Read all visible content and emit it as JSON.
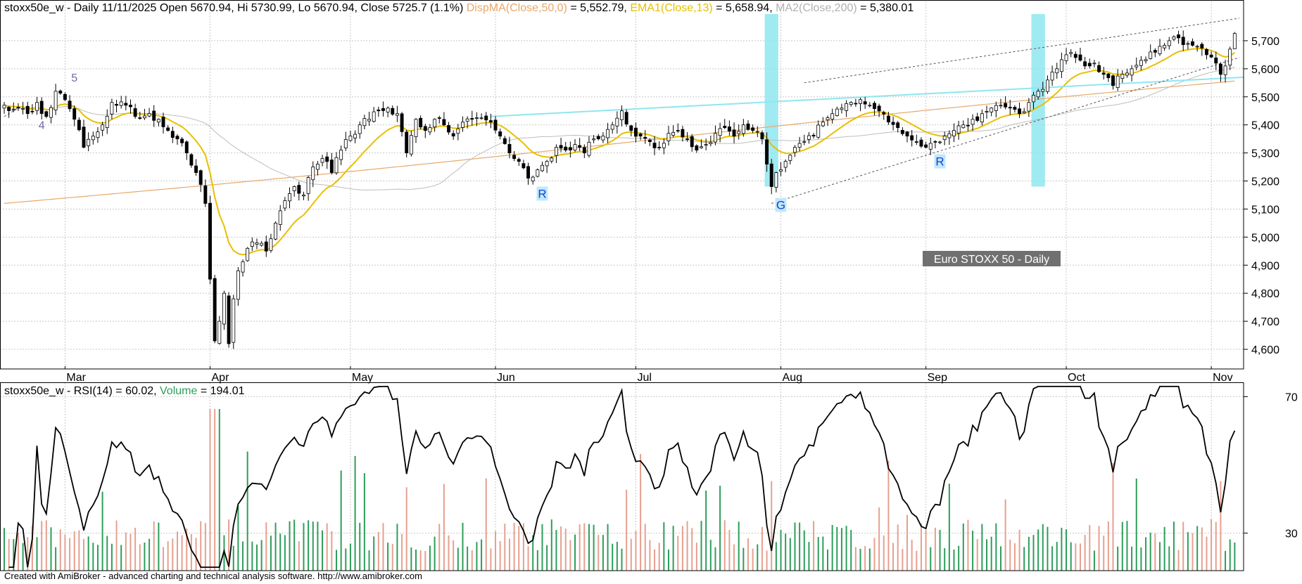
{
  "header": {
    "ticker": "stoxx50e_w",
    "summary": "stoxx50e_w - Daily 11/11/2025 Open 5670.94, Hi 5730.99, Lo 5670.94, Close 5725.7 (1.1%)",
    "ma50_label": "DispMA(Close,50,0)",
    "ma50_value": " = 5,552.79, ",
    "ema13_label": "EMA1(Close,13)",
    "ema13_value": " = 5,658.94, ",
    "ma200_label": "MA2(Close,200)",
    "ma200_value": " = 5,380.01"
  },
  "lower_header": {
    "rsi_text": "stoxx50e_w - RSI(14) = 60.02, ",
    "volume_label": "Volume",
    "volume_value": " = 194.01"
  },
  "watermark": "Euro STOXX 50 - Daily",
  "footer": "Created with AmiBroker - advanced charting and technical analysis software. http://www.amibroker.com",
  "colors": {
    "ma50": "#e8a86a",
    "ema13": "#e8c000",
    "ma200": "#bdbdbd",
    "volume_up": "#2e9d5a",
    "volume_down": "#e6a08f",
    "highlight": "#8fe6f0",
    "trendline": "#8fe6f0",
    "rsi": "#000000",
    "grid": "#c8c8c8"
  },
  "chart_data": [
    {
      "type": "candlestick",
      "name": "price",
      "y_ticks": [
        4600,
        4700,
        4800,
        4900,
        5000,
        5100,
        5200,
        5300,
        5400,
        5500,
        5600,
        5700
      ],
      "y_tick_labels": [
        "4,600",
        "4,700",
        "4,800",
        "4,900",
        "5,000",
        "5,100",
        "5,200",
        "5,300",
        "5,400",
        "5,500",
        "5,600",
        "5,700"
      ],
      "ylim": [
        4530,
        5790
      ],
      "grid": true,
      "x_month_labels": [
        {
          "label": "Mar",
          "day": 13
        },
        {
          "label": "Apr",
          "day": 44
        },
        {
          "label": "May",
          "day": 74
        },
        {
          "label": "Jun",
          "day": 105
        },
        {
          "label": "Jul",
          "day": 135
        },
        {
          "label": "Aug",
          "day": 166
        },
        {
          "label": "Sep",
          "day": 197
        },
        {
          "label": "Oct",
          "day": 227
        },
        {
          "label": "Nov",
          "day": 258
        }
      ],
      "anchors": [
        {
          "day": 0,
          "close": 5470
        },
        {
          "day": 2,
          "close": 5455
        },
        {
          "day": 5,
          "close": 5440
        },
        {
          "day": 7,
          "close": 5480
        },
        {
          "day": 9,
          "close": 5430
        },
        {
          "day": 11,
          "close": 5520
        },
        {
          "day": 13,
          "close": 5490
        },
        {
          "day": 15,
          "close": 5420
        },
        {
          "day": 17,
          "close": 5320
        },
        {
          "day": 19,
          "close": 5360
        },
        {
          "day": 21,
          "close": 5400
        },
        {
          "day": 23,
          "close": 5480
        },
        {
          "day": 26,
          "close": 5470
        },
        {
          "day": 28,
          "close": 5430
        },
        {
          "day": 31,
          "close": 5440
        },
        {
          "day": 33,
          "close": 5420
        },
        {
          "day": 35,
          "close": 5380
        },
        {
          "day": 37,
          "close": 5350
        },
        {
          "day": 39,
          "close": 5300
        },
        {
          "day": 41,
          "close": 5230
        },
        {
          "day": 43,
          "close": 5120
        },
        {
          "day": 44,
          "close": 4850
        },
        {
          "day": 45,
          "close": 4630
        },
        {
          "day": 46,
          "close": 4700
        },
        {
          "day": 47,
          "close": 4800
        },
        {
          "day": 48,
          "close": 4620
        },
        {
          "day": 49,
          "close": 4780
        },
        {
          "day": 50,
          "close": 4880
        },
        {
          "day": 52,
          "close": 4960
        },
        {
          "day": 54,
          "close": 4980
        },
        {
          "day": 56,
          "close": 4950
        },
        {
          "day": 58,
          "close": 5050
        },
        {
          "day": 60,
          "close": 5130
        },
        {
          "day": 62,
          "close": 5180
        },
        {
          "day": 64,
          "close": 5150
        },
        {
          "day": 66,
          "close": 5250
        },
        {
          "day": 68,
          "close": 5280
        },
        {
          "day": 70,
          "close": 5230
        },
        {
          "day": 72,
          "close": 5310
        },
        {
          "day": 74,
          "close": 5360
        },
        {
          "day": 76,
          "close": 5400
        },
        {
          "day": 78,
          "close": 5420
        },
        {
          "day": 80,
          "close": 5450
        },
        {
          "day": 82,
          "close": 5460
        },
        {
          "day": 84,
          "close": 5440
        },
        {
          "day": 86,
          "close": 5300
        },
        {
          "day": 88,
          "close": 5420
        },
        {
          "day": 90,
          "close": 5380
        },
        {
          "day": 92,
          "close": 5420
        },
        {
          "day": 94,
          "close": 5400
        },
        {
          "day": 96,
          "close": 5360
        },
        {
          "day": 98,
          "close": 5410
        },
        {
          "day": 100,
          "close": 5420
        },
        {
          "day": 102,
          "close": 5425
        },
        {
          "day": 104,
          "close": 5410
        },
        {
          "day": 106,
          "close": 5360
        },
        {
          "day": 108,
          "close": 5300
        },
        {
          "day": 110,
          "close": 5270
        },
        {
          "day": 112,
          "close": 5210
        },
        {
          "day": 114,
          "close": 5240
        },
        {
          "day": 116,
          "close": 5270
        },
        {
          "day": 118,
          "close": 5320
        },
        {
          "day": 120,
          "close": 5310
        },
        {
          "day": 122,
          "close": 5330
        },
        {
          "day": 124,
          "close": 5300
        },
        {
          "day": 126,
          "close": 5350
        },
        {
          "day": 128,
          "close": 5360
        },
        {
          "day": 130,
          "close": 5400
        },
        {
          "day": 132,
          "close": 5450
        },
        {
          "day": 134,
          "close": 5380
        },
        {
          "day": 136,
          "close": 5360
        },
        {
          "day": 138,
          "close": 5340
        },
        {
          "day": 140,
          "close": 5320
        },
        {
          "day": 142,
          "close": 5370
        },
        {
          "day": 144,
          "close": 5380
        },
        {
          "day": 146,
          "close": 5350
        },
        {
          "day": 148,
          "close": 5310
        },
        {
          "day": 150,
          "close": 5330
        },
        {
          "day": 152,
          "close": 5370
        },
        {
          "day": 154,
          "close": 5390
        },
        {
          "day": 156,
          "close": 5360
        },
        {
          "day": 158,
          "close": 5400
        },
        {
          "day": 160,
          "close": 5380
        },
        {
          "day": 162,
          "close": 5350
        },
        {
          "day": 163,
          "close": 5260
        },
        {
          "day": 164,
          "close": 5180
        },
        {
          "day": 165,
          "close": 5230
        },
        {
          "day": 167,
          "close": 5270
        },
        {
          "day": 169,
          "close": 5320
        },
        {
          "day": 171,
          "close": 5340
        },
        {
          "day": 173,
          "close": 5360
        },
        {
          "day": 175,
          "close": 5410
        },
        {
          "day": 177,
          "close": 5440
        },
        {
          "day": 179,
          "close": 5460
        },
        {
          "day": 181,
          "close": 5480
        },
        {
          "day": 183,
          "close": 5490
        },
        {
          "day": 185,
          "close": 5470
        },
        {
          "day": 187,
          "close": 5450
        },
        {
          "day": 189,
          "close": 5410
        },
        {
          "day": 191,
          "close": 5390
        },
        {
          "day": 193,
          "close": 5360
        },
        {
          "day": 195,
          "close": 5340
        },
        {
          "day": 197,
          "close": 5320
        },
        {
          "day": 199,
          "close": 5340
        },
        {
          "day": 201,
          "close": 5360
        },
        {
          "day": 203,
          "close": 5380
        },
        {
          "day": 205,
          "close": 5400
        },
        {
          "day": 207,
          "close": 5420
        },
        {
          "day": 209,
          "close": 5440
        },
        {
          "day": 211,
          "close": 5460
        },
        {
          "day": 213,
          "close": 5470
        },
        {
          "day": 215,
          "close": 5460
        },
        {
          "day": 217,
          "close": 5440
        },
        {
          "day": 219,
          "close": 5480
        },
        {
          "day": 221,
          "close": 5520
        },
        {
          "day": 223,
          "close": 5560
        },
        {
          "day": 225,
          "close": 5600
        },
        {
          "day": 227,
          "close": 5650
        },
        {
          "day": 229,
          "close": 5640
        },
        {
          "day": 231,
          "close": 5610
        },
        {
          "day": 233,
          "close": 5620
        },
        {
          "day": 235,
          "close": 5580
        },
        {
          "day": 237,
          "close": 5540
        },
        {
          "day": 239,
          "close": 5580
        },
        {
          "day": 241,
          "close": 5600
        },
        {
          "day": 243,
          "close": 5630
        },
        {
          "day": 245,
          "close": 5660
        },
        {
          "day": 247,
          "close": 5680
        },
        {
          "day": 249,
          "close": 5700
        },
        {
          "day": 251,
          "close": 5710
        },
        {
          "day": 253,
          "close": 5690
        },
        {
          "day": 255,
          "close": 5680
        },
        {
          "day": 257,
          "close": 5650
        },
        {
          "day": 259,
          "close": 5620
        },
        {
          "day": 260,
          "close": 5580
        },
        {
          "day": 261,
          "close": 5610
        },
        {
          "day": 262,
          "close": 5670
        },
        {
          "day": 263,
          "close": 5725.7
        }
      ],
      "last_bar": {
        "open": 5670.94,
        "high": 5730.99,
        "low": 5670.94,
        "close": 5725.7
      },
      "ma50_last": 5552.79,
      "ema13_last": 5658.94,
      "ma200_last": 5380.01,
      "highlight_days": [
        [
          163,
          165
        ],
        [
          220,
          222
        ]
      ],
      "signals": [
        {
          "label": "R",
          "day": 115,
          "price": 5140
        },
        {
          "label": "G",
          "day": 166,
          "price": 5100
        },
        {
          "label": "R",
          "day": 200,
          "price": 5255
        }
      ],
      "wave_labels": [
        {
          "label": "5",
          "day": 15,
          "price": 5555
        },
        {
          "label": "4",
          "day": 8,
          "price": 5385
        }
      ],
      "trendlines": [
        {
          "style": "solid",
          "from": {
            "day": 104,
            "price": 5430
          },
          "to": {
            "day": 265,
            "price": 5570
          }
        },
        {
          "style": "dashed",
          "from": {
            "day": 164,
            "price": 5120
          },
          "to": {
            "day": 264,
            "price": 5640
          }
        },
        {
          "style": "dashed",
          "from": {
            "day": 171,
            "price": 5550
          },
          "to": {
            "day": 264,
            "price": 5780
          }
        },
        {
          "style": "dashed",
          "from": {
            "day": 0,
            "price": 5430
          },
          "to": {
            "day": 3,
            "price": 5460
          }
        }
      ]
    },
    {
      "type": "line",
      "name": "RSI(14)",
      "last_value": 60.02,
      "y_ticks": [
        30,
        70
      ],
      "ylim": [
        19,
        74
      ],
      "grid": true
    },
    {
      "type": "bar",
      "name": "Volume",
      "last_value": 194.01
    }
  ]
}
